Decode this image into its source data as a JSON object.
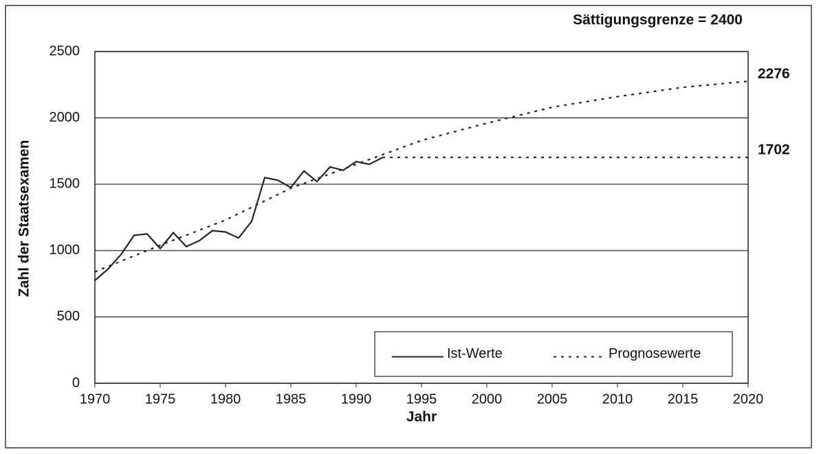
{
  "chart_data": {
    "type": "line",
    "annotation": "Sättigungsgrenze  = 2400",
    "x_label": "Jahr",
    "y_label": "Zahl der Staatsexamen",
    "xlim": [
      1970,
      2020
    ],
    "xticks": [
      1970,
      1975,
      1980,
      1985,
      1990,
      1995,
      2000,
      2005,
      2010,
      2015,
      2020
    ],
    "ylim": [
      0,
      2500
    ],
    "yticks": [
      0,
      500,
      1000,
      1500,
      2000,
      2500
    ],
    "grid": true,
    "legend": "bottom-right",
    "series": [
      {
        "name": "Ist-Werte",
        "color": "#222222",
        "style": "solid",
        "x": [
          1970,
          1971,
          1972,
          1973,
          1974,
          1975,
          1976,
          1977,
          1978,
          1979,
          1980,
          1981,
          1982,
          1983,
          1984,
          1985,
          1986,
          1987,
          1988,
          1989,
          1990,
          1991,
          1992
        ],
        "values": [
          775,
          860,
          970,
          1115,
          1125,
          1015,
          1135,
          1030,
          1075,
          1150,
          1140,
          1095,
          1220,
          1550,
          1530,
          1475,
          1600,
          1520,
          1630,
          1605,
          1670,
          1650,
          1700
        ]
      },
      {
        "name": "Prognosewerte",
        "color": "#222222",
        "style": "dotted",
        "end_label": true,
        "x": [
          1970,
          1975,
          1980,
          1985,
          1990,
          1995,
          2000,
          2005,
          2010,
          2015,
          2020
        ],
        "values": [
          840,
          1040,
          1230,
          1470,
          1650,
          1830,
          1960,
          2080,
          2160,
          2230,
          2276
        ]
      },
      {
        "color": "#222222",
        "style": "dotted",
        "end_label": true,
        "x": [
          1992,
          2020
        ],
        "values": [
          1702,
          1702
        ]
      }
    ]
  }
}
